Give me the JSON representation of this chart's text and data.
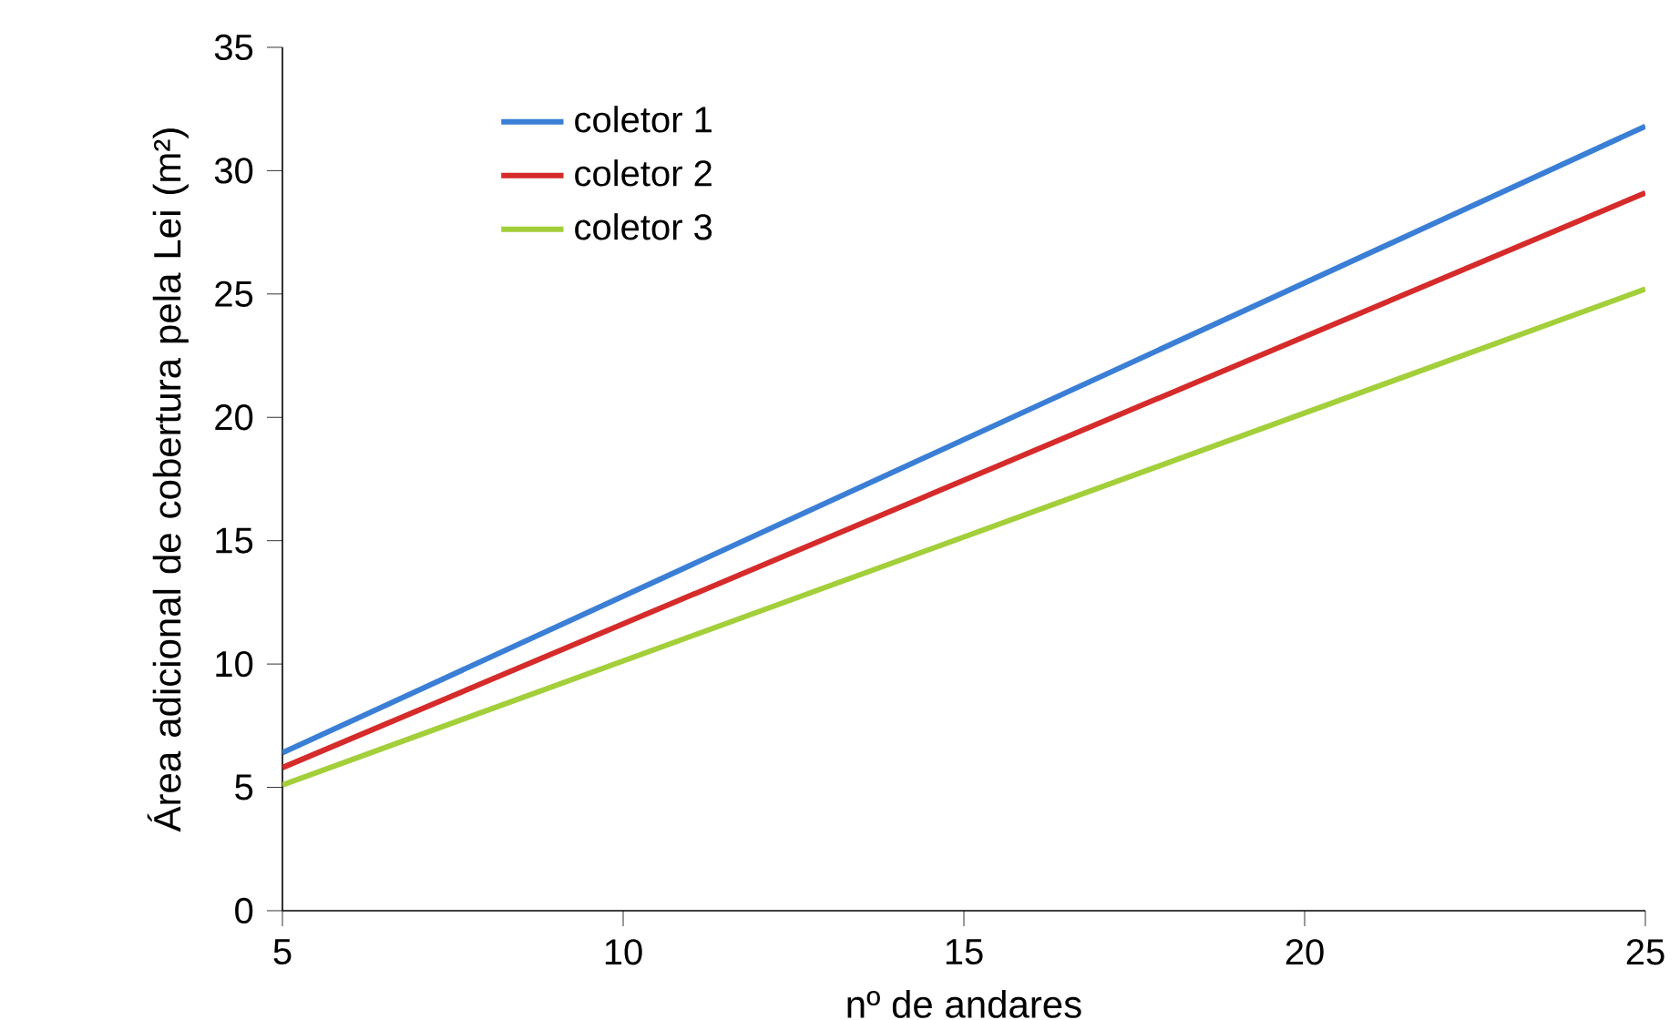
{
  "chart_data": {
    "type": "line",
    "xlabel": "nº de andares",
    "ylabel": "Área adicional de cobertura pela Lei (m²)",
    "x": [
      5,
      25
    ],
    "series": [
      {
        "name": "coletor 1",
        "color": "#3a7fd5",
        "values": [
          6.4,
          31.8
        ]
      },
      {
        "name": "coletor 2",
        "color": "#d52b2b",
        "values": [
          5.8,
          29.1
        ]
      },
      {
        "name": "coletor 3",
        "color": "#a3cf3a",
        "values": [
          5.1,
          25.2
        ]
      }
    ],
    "xlim": [
      5,
      25
    ],
    "xticks": [
      5,
      10,
      15,
      20,
      25
    ],
    "ylim": [
      0,
      35
    ],
    "yticks": [
      0,
      5,
      10,
      15,
      20,
      25,
      30,
      35
    ],
    "grid": false,
    "legend": "top left",
    "marker": "none",
    "line_style": "solid"
  }
}
